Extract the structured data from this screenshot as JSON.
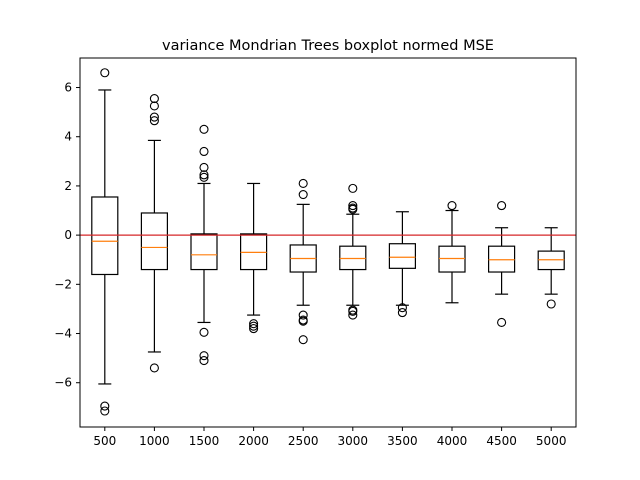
{
  "chart_data": {
    "type": "box",
    "title": "variance Mondrian Trees boxplot normed MSE",
    "xlabel": "",
    "ylabel": "",
    "categories": [
      "500",
      "1000",
      "1500",
      "2000",
      "2500",
      "3000",
      "3500",
      "4000",
      "4500",
      "5000"
    ],
    "ylim": [
      -7.8,
      7.2
    ],
    "yticks": [
      -6,
      -4,
      -2,
      0,
      2,
      4,
      6
    ],
    "ytick_labels": [
      "−6",
      "−4",
      "−2",
      "0",
      "2",
      "4",
      "6"
    ],
    "reference_line": {
      "y": 0,
      "color": "#d62728"
    },
    "median_color": "#ff7f0e",
    "grid": false,
    "boxes": [
      {
        "category": "500",
        "whisker_low": -6.05,
        "q1": -1.6,
        "median": -0.25,
        "q3": 1.55,
        "whisker_high": 5.9,
        "outliers": [
          6.6,
          -6.95,
          -7.15
        ]
      },
      {
        "category": "1000",
        "whisker_low": -4.75,
        "q1": -1.4,
        "median": -0.5,
        "q3": 0.9,
        "whisker_high": 3.85,
        "outliers": [
          5.55,
          5.25,
          4.8,
          4.65,
          -5.4
        ]
      },
      {
        "category": "1500",
        "whisker_low": -3.55,
        "q1": -1.4,
        "median": -0.8,
        "q3": 0.05,
        "whisker_high": 2.1,
        "outliers": [
          4.3,
          3.4,
          2.75,
          2.45,
          2.35,
          -3.95,
          -4.9,
          -5.1
        ]
      },
      {
        "category": "2000",
        "whisker_low": -3.25,
        "q1": -1.4,
        "median": -0.7,
        "q3": 0.05,
        "whisker_high": 2.1,
        "outliers": [
          -3.6,
          -3.7,
          -3.8
        ]
      },
      {
        "category": "2500",
        "whisker_low": -2.85,
        "q1": -1.5,
        "median": -0.95,
        "q3": -0.4,
        "whisker_high": 1.25,
        "outliers": [
          2.1,
          1.65,
          -3.25,
          -3.45,
          -3.5,
          -4.25
        ]
      },
      {
        "category": "3000",
        "whisker_low": -2.85,
        "q1": -1.4,
        "median": -0.95,
        "q3": -0.45,
        "whisker_high": 0.85,
        "outliers": [
          1.9,
          1.2,
          1.1,
          1.05,
          -3.05,
          -3.1,
          -3.25
        ]
      },
      {
        "category": "3500",
        "whisker_low": -2.85,
        "q1": -1.35,
        "median": -0.9,
        "q3": -0.35,
        "whisker_high": 0.95,
        "outliers": [
          -2.95,
          -3.15
        ]
      },
      {
        "category": "4000",
        "whisker_low": -2.75,
        "q1": -1.5,
        "median": -0.95,
        "q3": -0.45,
        "whisker_high": 1.0,
        "outliers": [
          1.2
        ]
      },
      {
        "category": "4500",
        "whisker_low": -2.4,
        "q1": -1.5,
        "median": -1.0,
        "q3": -0.45,
        "whisker_high": 0.3,
        "outliers": [
          1.2,
          -3.55
        ]
      },
      {
        "category": "5000",
        "whisker_low": -2.4,
        "q1": -1.4,
        "median": -1.0,
        "q3": -0.65,
        "whisker_high": 0.3,
        "outliers": [
          -2.8
        ]
      }
    ]
  }
}
